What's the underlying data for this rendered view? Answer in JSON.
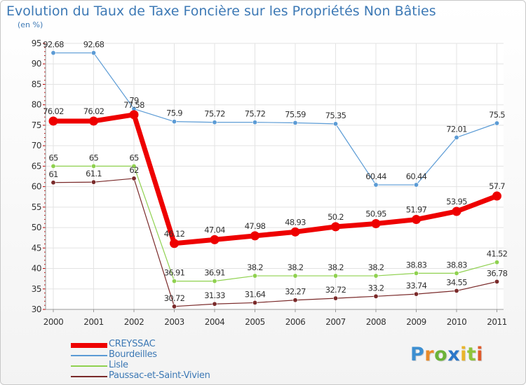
{
  "title": "Evolution du Taux de Taxe Foncière sur les Propriétés Non Bâties",
  "subtitle": "(en %)",
  "logo_text": "Proxiti",
  "chart_data": {
    "type": "line",
    "title": "Evolution du Taux de Taxe Foncière sur les Propriétés Non Bâties",
    "subtitle": "(en %)",
    "x": [
      "2000",
      "2001",
      "2002",
      "2003",
      "2004",
      "2005",
      "2006",
      "2007",
      "2008",
      "2009",
      "2010",
      "2011"
    ],
    "ylim": [
      30,
      95
    ],
    "yticks": [
      "30",
      "35",
      "40",
      "45",
      "50",
      "55",
      "60",
      "65",
      "70",
      "75",
      "80",
      "85",
      "90",
      "95"
    ],
    "grid": true,
    "legend_position": "bottom-left",
    "series": [
      {
        "name": "CREYSSAC",
        "color": "#ee0000",
        "values": [
          76.02,
          76.02,
          77.58,
          46.12,
          47.04,
          47.98,
          48.93,
          50.2,
          50.95,
          51.97,
          53.95,
          57.7
        ],
        "labels": [
          "76.02",
          "76.02",
          "77.58",
          "46.12",
          "47.04",
          "47.98",
          "48.93",
          "50.2",
          "50.95",
          "51.97",
          "53.95",
          "57.7"
        ]
      },
      {
        "name": "Bourdeilles",
        "color": "#5b9bd5",
        "values": [
          92.68,
          92.68,
          79,
          75.9,
          75.72,
          75.72,
          75.59,
          75.35,
          60.44,
          60.44,
          72.01,
          75.5
        ],
        "labels": [
          "92.68",
          "92.68",
          "79",
          "75.9",
          "75.72",
          "75.72",
          "75.59",
          "75.35",
          "60.44",
          "60.44",
          "72.01",
          "75.5"
        ]
      },
      {
        "name": "Lisle",
        "color": "#8fd14f",
        "values": [
          65,
          65,
          65,
          36.91,
          36.91,
          38.2,
          38.2,
          38.2,
          38.2,
          38.83,
          38.83,
          41.52
        ],
        "labels": [
          "65",
          "65",
          "65",
          "36.91",
          "36.91",
          "38.2",
          "38.2",
          "38.2",
          "38.2",
          "38.83",
          "38.83",
          "41.52"
        ]
      },
      {
        "name": "Paussac-et-Saint-Vivien",
        "color": "#7a2a2a",
        "values": [
          61,
          61.1,
          62,
          30.72,
          31.33,
          31.64,
          32.27,
          32.72,
          33.2,
          33.74,
          34.55,
          36.78
        ],
        "labels": [
          "61",
          "61.1",
          "62",
          "30.72",
          "31.33",
          "31.64",
          "32.27",
          "32.72",
          "33.2",
          "33.74",
          "34.55",
          "36.78"
        ]
      }
    ]
  }
}
